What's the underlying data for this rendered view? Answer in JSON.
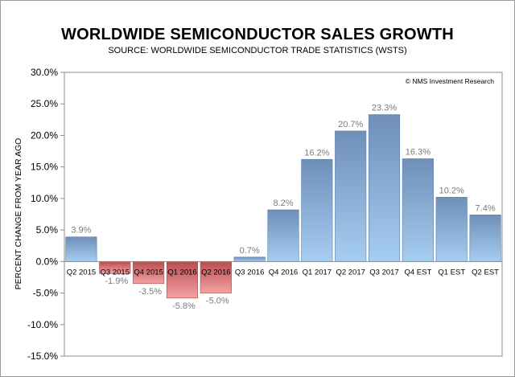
{
  "chart_data": {
    "type": "bar",
    "title": "WORLDWIDE SEMICONDUCTOR SALES GROWTH",
    "subtitle": "SOURCE: WORLDWIDE SEMICONDUCTOR TRADE STATISTICS (WSTS)",
    "xlabel": "",
    "ylabel": "PERCENT CHANGE FROM YEAR AGO",
    "credit": "© NMS Investment Research",
    "ylim": [
      -15,
      30
    ],
    "yticks": [
      30,
      25,
      20,
      15,
      10,
      5,
      0,
      -5,
      -10,
      -15
    ],
    "ytick_labels": [
      "30.0%",
      "25.0%",
      "20.0%",
      "15.0%",
      "10.0%",
      "5.0%",
      "0.0%",
      "-5.0%",
      "-10.0%",
      "-15.0%"
    ],
    "categories": [
      "Q2 2015",
      "Q3 2015",
      "Q4 2015",
      "Q1 2016",
      "Q2 2016",
      "Q3 2016",
      "Q4 2016",
      "Q1 2017",
      "Q2 2017",
      "Q3 2017",
      "Q4 EST",
      "Q1 EST",
      "Q2 EST"
    ],
    "values": [
      3.9,
      -1.9,
      -3.5,
      -5.8,
      -5.0,
      0.7,
      8.2,
      16.2,
      20.7,
      23.3,
      16.3,
      10.2,
      7.4
    ],
    "value_labels": [
      "3.9%",
      "-1.9%",
      "-3.5%",
      "-5.8%",
      "-5.0%",
      "0.7%",
      "8.2%",
      "16.2%",
      "20.7%",
      "23.3%",
      "16.3%",
      "10.2%",
      "7.4%"
    ],
    "grid": false,
    "legend": "none",
    "colors": {
      "positive_top": "#6f8fb8",
      "positive_bottom": "#a6cdf2",
      "negative_top": "#b84d50",
      "negative_bottom": "#f4a3a4"
    }
  }
}
